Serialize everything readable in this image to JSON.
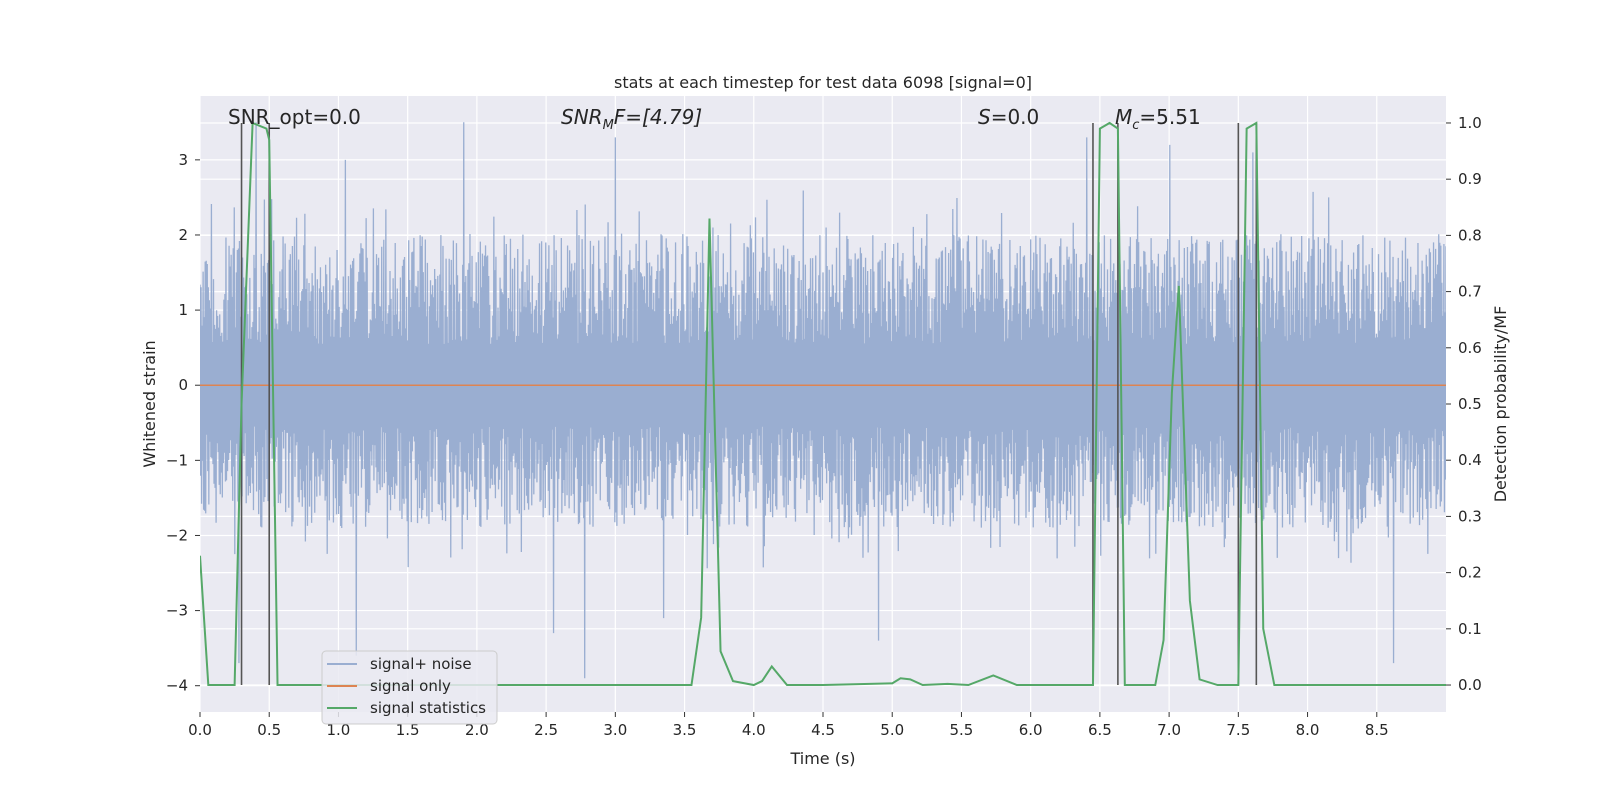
{
  "chart_data": {
    "type": "line",
    "title": "stats at each timestep for test data 6098 [signal=0]",
    "xlabel": "Time (s)",
    "ylabel": "Whitened strain",
    "y2label": "Detection probability/MF",
    "xlim": [
      0,
      9
    ],
    "ylim": [
      -4.35,
      3.85
    ],
    "y2lim": [
      -0.048,
      1.048
    ],
    "grid": true,
    "x_ticks": [
      {
        "v": 0.0,
        "label": "0.0"
      },
      {
        "v": 0.5,
        "label": "0.5"
      },
      {
        "v": 1.0,
        "label": "1.0"
      },
      {
        "v": 1.5,
        "label": "1.5"
      },
      {
        "v": 2.0,
        "label": "2.0"
      },
      {
        "v": 2.5,
        "label": "2.5"
      },
      {
        "v": 3.0,
        "label": "3.0"
      },
      {
        "v": 3.5,
        "label": "3.5"
      },
      {
        "v": 4.0,
        "label": "4.0"
      },
      {
        "v": 4.5,
        "label": "4.5"
      },
      {
        "v": 5.0,
        "label": "5.0"
      },
      {
        "v": 5.5,
        "label": "5.5"
      },
      {
        "v": 6.0,
        "label": "6.0"
      },
      {
        "v": 6.5,
        "label": "6.5"
      },
      {
        "v": 7.0,
        "label": "7.0"
      },
      {
        "v": 7.5,
        "label": "7.5"
      },
      {
        "v": 8.0,
        "label": "8.0"
      },
      {
        "v": 8.5,
        "label": "8.5"
      }
    ],
    "y_ticks": [
      {
        "v": 3,
        "label": "3"
      },
      {
        "v": 2,
        "label": "2"
      },
      {
        "v": 1,
        "label": "1"
      },
      {
        "v": 0,
        "label": "0"
      },
      {
        "v": -1,
        "label": "−1"
      },
      {
        "v": -2,
        "label": "−2"
      },
      {
        "v": -3,
        "label": "−3"
      },
      {
        "v": -4,
        "label": "−4"
      }
    ],
    "y2_ticks": [
      {
        "v": 1.0,
        "label": "1.0"
      },
      {
        "v": 0.9,
        "label": "0.9"
      },
      {
        "v": 0.8,
        "label": "0.8"
      },
      {
        "v": 0.7,
        "label": "0.7"
      },
      {
        "v": 0.6,
        "label": "0.6"
      },
      {
        "v": 0.5,
        "label": "0.5"
      },
      {
        "v": 0.4,
        "label": "0.4"
      },
      {
        "v": 0.3,
        "label": "0.3"
      },
      {
        "v": 0.2,
        "label": "0.2"
      },
      {
        "v": 0.1,
        "label": "0.1"
      },
      {
        "v": 0.0,
        "label": "0.0"
      }
    ],
    "annotations": {
      "snr_opt": "SNR_opt=0.0",
      "snr_mf_sym": "SNR",
      "snr_mf_sub": "M",
      "snr_mf_rest": "F=[4.79]",
      "s_sym": "S",
      "s_rest": "=0.0",
      "mc_sym": "M",
      "mc_sub": "c",
      "mc_rest": "=5.51"
    },
    "legend": {
      "placement": "lower-left",
      "entries": [
        "signal+ noise",
        "signal only",
        "signal statistics"
      ]
    },
    "colors": {
      "noise": "#9aaed1",
      "signal_only": "#dd8452",
      "stats": "#55a868",
      "vlines": "#555555",
      "axes_bg": "#eaeaf2",
      "grid": "#ffffff"
    },
    "series": [
      {
        "name": "signal+ noise",
        "axis": "left",
        "kind": "noise",
        "x_range": [
          0,
          9
        ],
        "envelope": [
          2.0,
          -1.9
        ],
        "peaks_up": [
          [
            0.4,
            3.5
          ],
          [
            1.05,
            3.0
          ],
          [
            1.9,
            3.5
          ],
          [
            3.0,
            3.3
          ],
          [
            6.4,
            3.3
          ],
          [
            7.0,
            3.2
          ],
          [
            7.6,
            3.1
          ]
        ],
        "peaks_down": [
          [
            0.28,
            -3.7
          ],
          [
            1.13,
            -3.6
          ],
          [
            2.55,
            -3.3
          ],
          [
            2.78,
            -3.9
          ],
          [
            3.35,
            -3.1
          ],
          [
            4.9,
            -3.4
          ],
          [
            8.62,
            -3.7
          ]
        ]
      },
      {
        "name": "signal only",
        "axis": "left",
        "x": [
          0,
          9
        ],
        "y": [
          0,
          0
        ]
      },
      {
        "name": "signal statistics",
        "axis": "right",
        "x": [
          0.0,
          0.06,
          0.25,
          0.3,
          0.38,
          0.48,
          0.5,
          0.56,
          1.0,
          3.0,
          3.55,
          3.62,
          3.68,
          3.76,
          3.85,
          4.0,
          4.06,
          4.13,
          4.24,
          4.5,
          5.0,
          5.06,
          5.13,
          5.22,
          5.4,
          5.55,
          5.73,
          5.9,
          6.0,
          6.45,
          6.5,
          6.57,
          6.63,
          6.68,
          6.78,
          6.9,
          6.96,
          7.02,
          7.07,
          7.15,
          7.22,
          7.35,
          7.5,
          7.56,
          7.63,
          7.68,
          7.76,
          8.0,
          9.0
        ],
        "y": [
          0.23,
          0.0,
          0.0,
          0.5,
          1.0,
          0.99,
          0.97,
          0.0,
          0.0,
          0.0,
          0.0,
          0.12,
          0.83,
          0.06,
          0.007,
          0.0,
          0.007,
          0.033,
          0.0,
          0.0,
          0.003,
          0.012,
          0.01,
          0.0,
          0.002,
          0.0,
          0.017,
          0.0,
          0.0,
          0.0,
          0.99,
          1.0,
          0.99,
          0.0,
          0.0,
          0.0,
          0.08,
          0.52,
          0.71,
          0.15,
          0.01,
          0.0,
          0.0,
          0.99,
          1.0,
          0.1,
          0.0,
          0.0,
          0.0
        ]
      }
    ],
    "vertical_lines": [
      {
        "x": 0.3,
        "y_range": [
          0,
          1
        ]
      },
      {
        "x": 0.5,
        "y_range": [
          0,
          1
        ]
      },
      {
        "x": 6.45,
        "y_range": [
          0,
          1
        ]
      },
      {
        "x": 6.63,
        "y_range": [
          0,
          1
        ]
      },
      {
        "x": 7.5,
        "y_range": [
          0,
          1
        ]
      },
      {
        "x": 7.63,
        "y_range": [
          0,
          1
        ]
      }
    ]
  }
}
